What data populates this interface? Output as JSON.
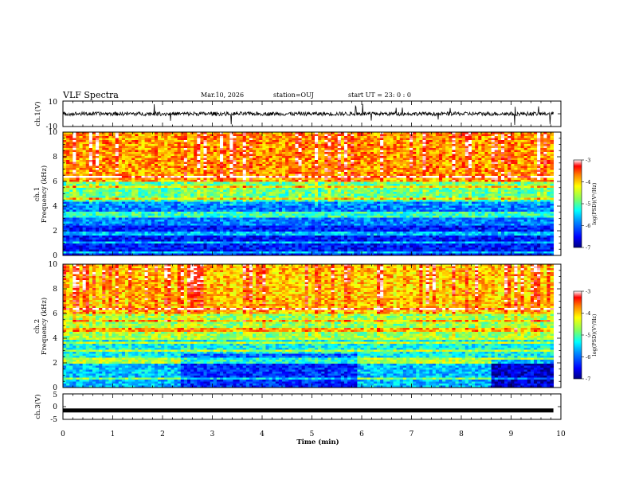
{
  "header": {
    "title": "VLF Spectra",
    "date": "Mar.10, 2026",
    "station": "station=OUJ",
    "start": "start  UT  =  23: 0  : 0"
  },
  "colors": {
    "axis": "#000000",
    "colormap": [
      "#000080",
      "#0000ff",
      "#0080ff",
      "#00ffff",
      "#80ff80",
      "#ffff00",
      "#ff8000",
      "#ff0000",
      "#ffffff"
    ]
  },
  "chart_data": [
    {
      "type": "line",
      "ylabel": "ch.1(V)",
      "ylim": [
        -10,
        10
      ],
      "yticks": [
        "10",
        "-10"
      ],
      "xlim": [
        0,
        10
      ],
      "series": [
        {
          "baseline": 0,
          "noise_amplitude": 1.5,
          "spike_amplitude": 9
        }
      ]
    },
    {
      "type": "heatmap",
      "ylabel": "ch.1\nFrequency (kHz)",
      "ylim": [
        0,
        10
      ],
      "yticks": [
        "0",
        "2",
        "4",
        "6",
        "8",
        "10"
      ],
      "xlim": [
        0,
        9.85
      ],
      "colorbar": {
        "label": "log(PSD)(V²/Hz)",
        "range": [
          -7,
          -3
        ],
        "ticks": [
          "-3",
          "-4",
          "-5",
          "-6",
          "-7"
        ]
      },
      "bands": [
        {
          "from_khz": 0,
          "to_khz": 2.5,
          "log_psd": -6.4
        },
        {
          "from_khz": 2.5,
          "to_khz": 4.5,
          "log_psd": -5.9
        },
        {
          "from_khz": 4.5,
          "to_khz": 6,
          "log_psd": -5.0
        },
        {
          "from_khz": 6,
          "to_khz": 10,
          "log_psd": -3.9
        }
      ]
    },
    {
      "type": "heatmap",
      "ylabel": "ch.2\nFrequency (kHz)",
      "ylim": [
        0,
        10
      ],
      "yticks": [
        "0",
        "2",
        "4",
        "6",
        "8",
        "10"
      ],
      "xlim": [
        0,
        9.85
      ],
      "colorbar": {
        "label": "log(PSD)(V²/Hz)",
        "range": [
          -7,
          -3
        ],
        "ticks": [
          "-3",
          "-4",
          "-5",
          "-6",
          "-7"
        ]
      },
      "bands": [
        {
          "from_khz": 0,
          "to_khz": 2,
          "log_psd": -5.6
        },
        {
          "from_khz": 2,
          "to_khz": 4,
          "log_psd": -5.3
        },
        {
          "from_khz": 4,
          "to_khz": 6,
          "log_psd": -4.8
        },
        {
          "from_khz": 6,
          "to_khz": 10,
          "log_psd": -4.1
        }
      ]
    },
    {
      "type": "line",
      "ylabel": "ch.3(V)",
      "ylim": [
        -5,
        5
      ],
      "yticks": [
        "5",
        "0",
        "-5"
      ],
      "xlim": [
        0,
        10
      ],
      "series": [
        {
          "constant": -1.5
        }
      ]
    }
  ],
  "xaxis": {
    "label": "Time  (min)",
    "ticks": [
      "0",
      "1",
      "2",
      "3",
      "4",
      "5",
      "6",
      "7",
      "8",
      "9",
      "10"
    ],
    "range": [
      0,
      10
    ]
  }
}
